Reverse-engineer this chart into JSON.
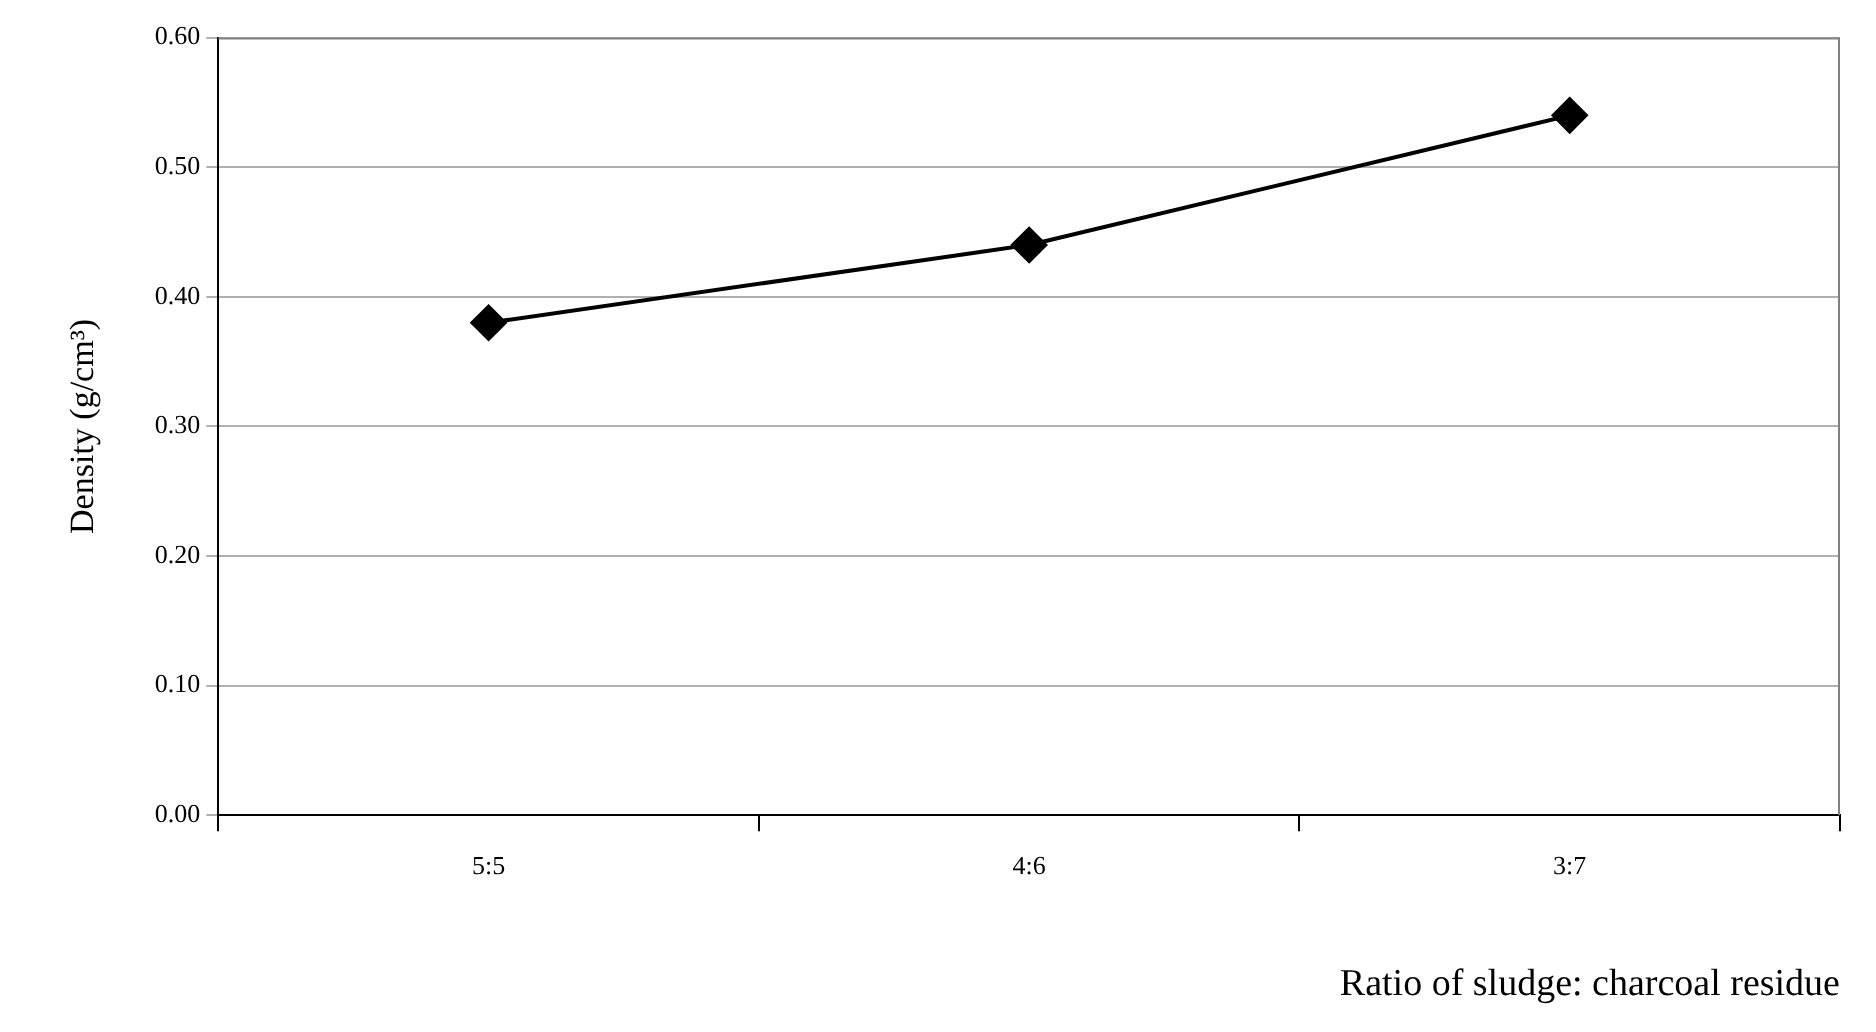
{
  "chart_data": {
    "type": "line",
    "xlabel": "Ratio of sludge: charcoal residue",
    "ylabel": "Density (g/cm³)",
    "categories": [
      "5:5",
      "4:6",
      "3:7"
    ],
    "series": [
      {
        "color": "#000000",
        "values": [
          0.38,
          0.44,
          0.54
        ]
      }
    ],
    "ylim": [
      0,
      0.6
    ],
    "yticks": [
      {
        "value": 0,
        "label": "0.00"
      },
      {
        "value": 0.1,
        "label": "0.10"
      },
      {
        "value": 0.2,
        "label": "0.20"
      },
      {
        "value": 0.3,
        "label": "0.30"
      },
      {
        "value": 0.4,
        "label": "0.40"
      },
      {
        "value": 0.5,
        "label": "0.50"
      },
      {
        "value": 0.6,
        "label": "0.60"
      }
    ],
    "grid": "y",
    "legend": false,
    "marker": "diamond",
    "line_style": "solid"
  }
}
